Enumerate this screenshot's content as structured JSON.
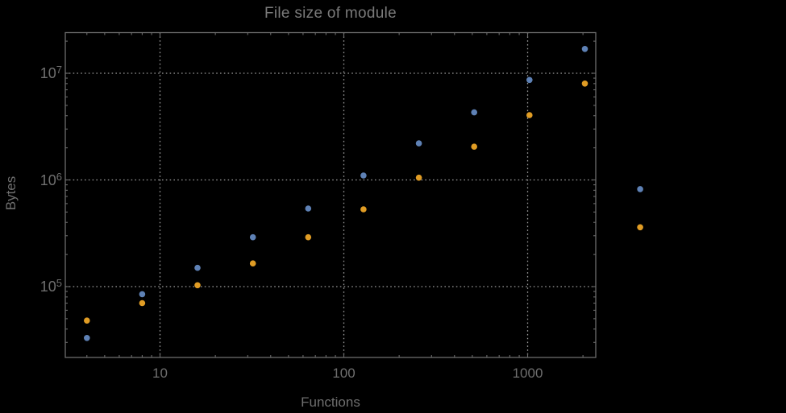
{
  "title": "File size of module",
  "colors": {
    "background": "#000000",
    "frame": "#6b6b6b",
    "grid": "#9a9a9a",
    "text": "#6f6f6f",
    "title_text": "#7a7a7a",
    "series_blue": "#5E81B5",
    "series_orange": "#E09C24"
  },
  "chart_data": {
    "type": "scatter",
    "title": "File size of module",
    "xlabel": "Functions",
    "ylabel": "Bytes",
    "x_scale": "log",
    "y_scale": "log",
    "xlim": [
      3.05,
      2350
    ],
    "ylim": [
      21700,
      24000000
    ],
    "grid": "dotted gray lines at decades",
    "legend": "none",
    "x_ticks": [
      {
        "label": "10",
        "value": 10
      },
      {
        "label": "100",
        "value": 100
      },
      {
        "label": "1000",
        "value": 1000
      }
    ],
    "y_ticks": [
      {
        "base": "10",
        "exp": "5",
        "value": 100000
      },
      {
        "base": "10",
        "exp": "6",
        "value": 1000000
      },
      {
        "base": "10",
        "exp": "7",
        "value": 10000000
      }
    ],
    "x": [
      4,
      8,
      16,
      32,
      64,
      128,
      256,
      512,
      1024,
      2048,
      4096
    ],
    "series": [
      {
        "name": "blue",
        "color": "#5E81B5",
        "values": [
          33000,
          85000,
          150000,
          290000,
          540000,
          1100000,
          2200000,
          4300000,
          8650000,
          16900000,
          820000
        ]
      },
      {
        "name": "orange",
        "color": "#E09C24",
        "values": [
          48000,
          70000,
          103000,
          165000,
          290000,
          530000,
          1050000,
          2050000,
          4050000,
          8000000,
          360000
        ]
      }
    ],
    "note": "points at x=4096 are drawn outside the right edge of the plot frame"
  }
}
